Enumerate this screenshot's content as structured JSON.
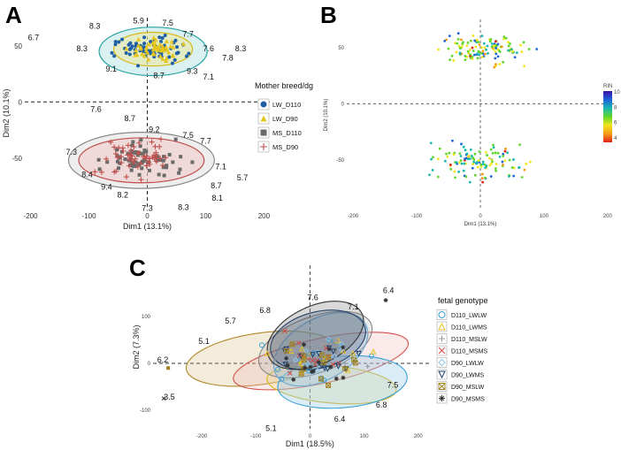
{
  "chart_data": [
    {
      "panel": "A",
      "type": "scatter",
      "xlabel": "Dim1 (13.1%)",
      "ylabel": "Dim2 (10.1%)",
      "xlim": [
        -210,
        210
      ],
      "ylim": [
        -95,
        75
      ],
      "xticks": [
        -200,
        -100,
        0,
        100,
        200
      ],
      "yticks": [
        50,
        0,
        -50
      ],
      "legend_title": "Mother breed/dg",
      "legend": [
        {
          "name": "LW_D110",
          "marker": "circle",
          "color": "#1f5fa8"
        },
        {
          "name": "LW_D90",
          "marker": "triangle",
          "color": "#e3c51c"
        },
        {
          "name": "MS_D110",
          "marker": "square",
          "color": "#6a6a6a"
        },
        {
          "name": "MS_D90",
          "marker": "plus",
          "color": "#c0504d"
        }
      ],
      "annotations": [
        {
          "text": "6.7",
          "x": -195,
          "y": 55
        },
        {
          "text": "8.3",
          "x": -90,
          "y": 65
        },
        {
          "text": "5.9",
          "x": -15,
          "y": 70
        },
        {
          "text": "7.5",
          "x": 35,
          "y": 68
        },
        {
          "text": "7.7",
          "x": 70,
          "y": 58
        },
        {
          "text": "8.3",
          "x": -112,
          "y": 45
        },
        {
          "text": "7.6",
          "x": 105,
          "y": 45
        },
        {
          "text": "8.3",
          "x": 160,
          "y": 45
        },
        {
          "text": "7.8",
          "x": 138,
          "y": 37
        },
        {
          "text": "9.1",
          "x": -62,
          "y": 27
        },
        {
          "text": "8.7",
          "x": 20,
          "y": 21
        },
        {
          "text": "9.3",
          "x": 77,
          "y": 25
        },
        {
          "text": "7.1",
          "x": 105,
          "y": 20
        },
        {
          "text": "7.6",
          "x": -88,
          "y": -9
        },
        {
          "text": "8.7",
          "x": -30,
          "y": -17
        },
        {
          "text": "9.2",
          "x": 12,
          "y": -27
        },
        {
          "text": "7.5",
          "x": 70,
          "y": -32
        },
        {
          "text": "7.7",
          "x": 100,
          "y": -37
        },
        {
          "text": "7.3",
          "x": -130,
          "y": -47
        },
        {
          "text": "7.1",
          "x": 126,
          "y": -60
        },
        {
          "text": "8.4",
          "x": -103,
          "y": -67
        },
        {
          "text": "9.4",
          "x": -70,
          "y": -78
        },
        {
          "text": "8.2",
          "x": -42,
          "y": -85
        },
        {
          "text": "8.7",
          "x": 118,
          "y": -77
        },
        {
          "text": "5.7",
          "x": 163,
          "y": -70
        },
        {
          "text": "8.1",
          "x": 120,
          "y": -88
        },
        {
          "text": "7.3",
          "x": 0,
          "y": -97
        },
        {
          "text": "8.3",
          "x": 62,
          "y": -96
        }
      ]
    },
    {
      "panel": "B",
      "type": "scatter",
      "xlabel": "Dim1 (13.1%)",
      "ylabel": "Dim2 (10.1%)",
      "xlim": [
        -210,
        210
      ],
      "ylim": [
        -95,
        75
      ],
      "xticks": [
        -200,
        -100,
        0,
        100,
        200
      ],
      "yticks": [
        50,
        0,
        -50
      ],
      "colorbar": {
        "title": "RIN",
        "ticks": [
          10,
          8,
          6,
          4
        ],
        "colors": [
          "#3b0fa8",
          "#1d63d9",
          "#18b7b0",
          "#5fd62a",
          "#f2e51b",
          "#f59a17",
          "#e0241b"
        ]
      }
    },
    {
      "panel": "C",
      "type": "scatter",
      "xlabel": "Dim1 (18.5%)",
      "ylabel": "Dim2 (7.3%)",
      "xlim": [
        -290,
        220
      ],
      "ylim": [
        -140,
        210
      ],
      "xticks": [
        -200,
        -100,
        0,
        100,
        200
      ],
      "yticks": [
        100,
        0,
        -100
      ],
      "legend_title": "fetal genotype",
      "legend": [
        {
          "name": "D110_LWLW",
          "marker": "circle",
          "color": "#3a9fd6"
        },
        {
          "name": "D110_LWMS",
          "marker": "triangle",
          "color": "#e8c227"
        },
        {
          "name": "D110_MSLW",
          "marker": "plus",
          "color": "#9a9a9a"
        },
        {
          "name": "D110_MSMS",
          "marker": "cross",
          "color": "#d0504d"
        },
        {
          "name": "D90_LWLW",
          "marker": "diamond",
          "color": "#90c4e8"
        },
        {
          "name": "D90_LWMS",
          "marker": "down-triangle",
          "color": "#1f3f6e"
        },
        {
          "name": "D90_MSLW",
          "marker": "boxed-cross",
          "color": "#a08020"
        },
        {
          "name": "D90_MSMS",
          "marker": "star",
          "color": "#333333"
        }
      ],
      "annotations": [
        {
          "text": "6.4",
          "x": 145,
          "y": 150
        },
        {
          "text": "7.6",
          "x": 5,
          "y": 135
        },
        {
          "text": "7.1",
          "x": 80,
          "y": 115
        },
        {
          "text": "6.8",
          "x": -83,
          "y": 108
        },
        {
          "text": "5.7",
          "x": -147,
          "y": 85
        },
        {
          "text": "5.1",
          "x": -196,
          "y": 42
        },
        {
          "text": "6.2",
          "x": -272,
          "y": 2
        },
        {
          "text": "3.5",
          "x": -260,
          "y": -78
        },
        {
          "text": "7.5",
          "x": 153,
          "y": -52
        },
        {
          "text": "6.8",
          "x": 132,
          "y": -95
        },
        {
          "text": "6.4",
          "x": 55,
          "y": -125
        },
        {
          "text": "5.1",
          "x": -72,
          "y": -145
        }
      ]
    }
  ]
}
